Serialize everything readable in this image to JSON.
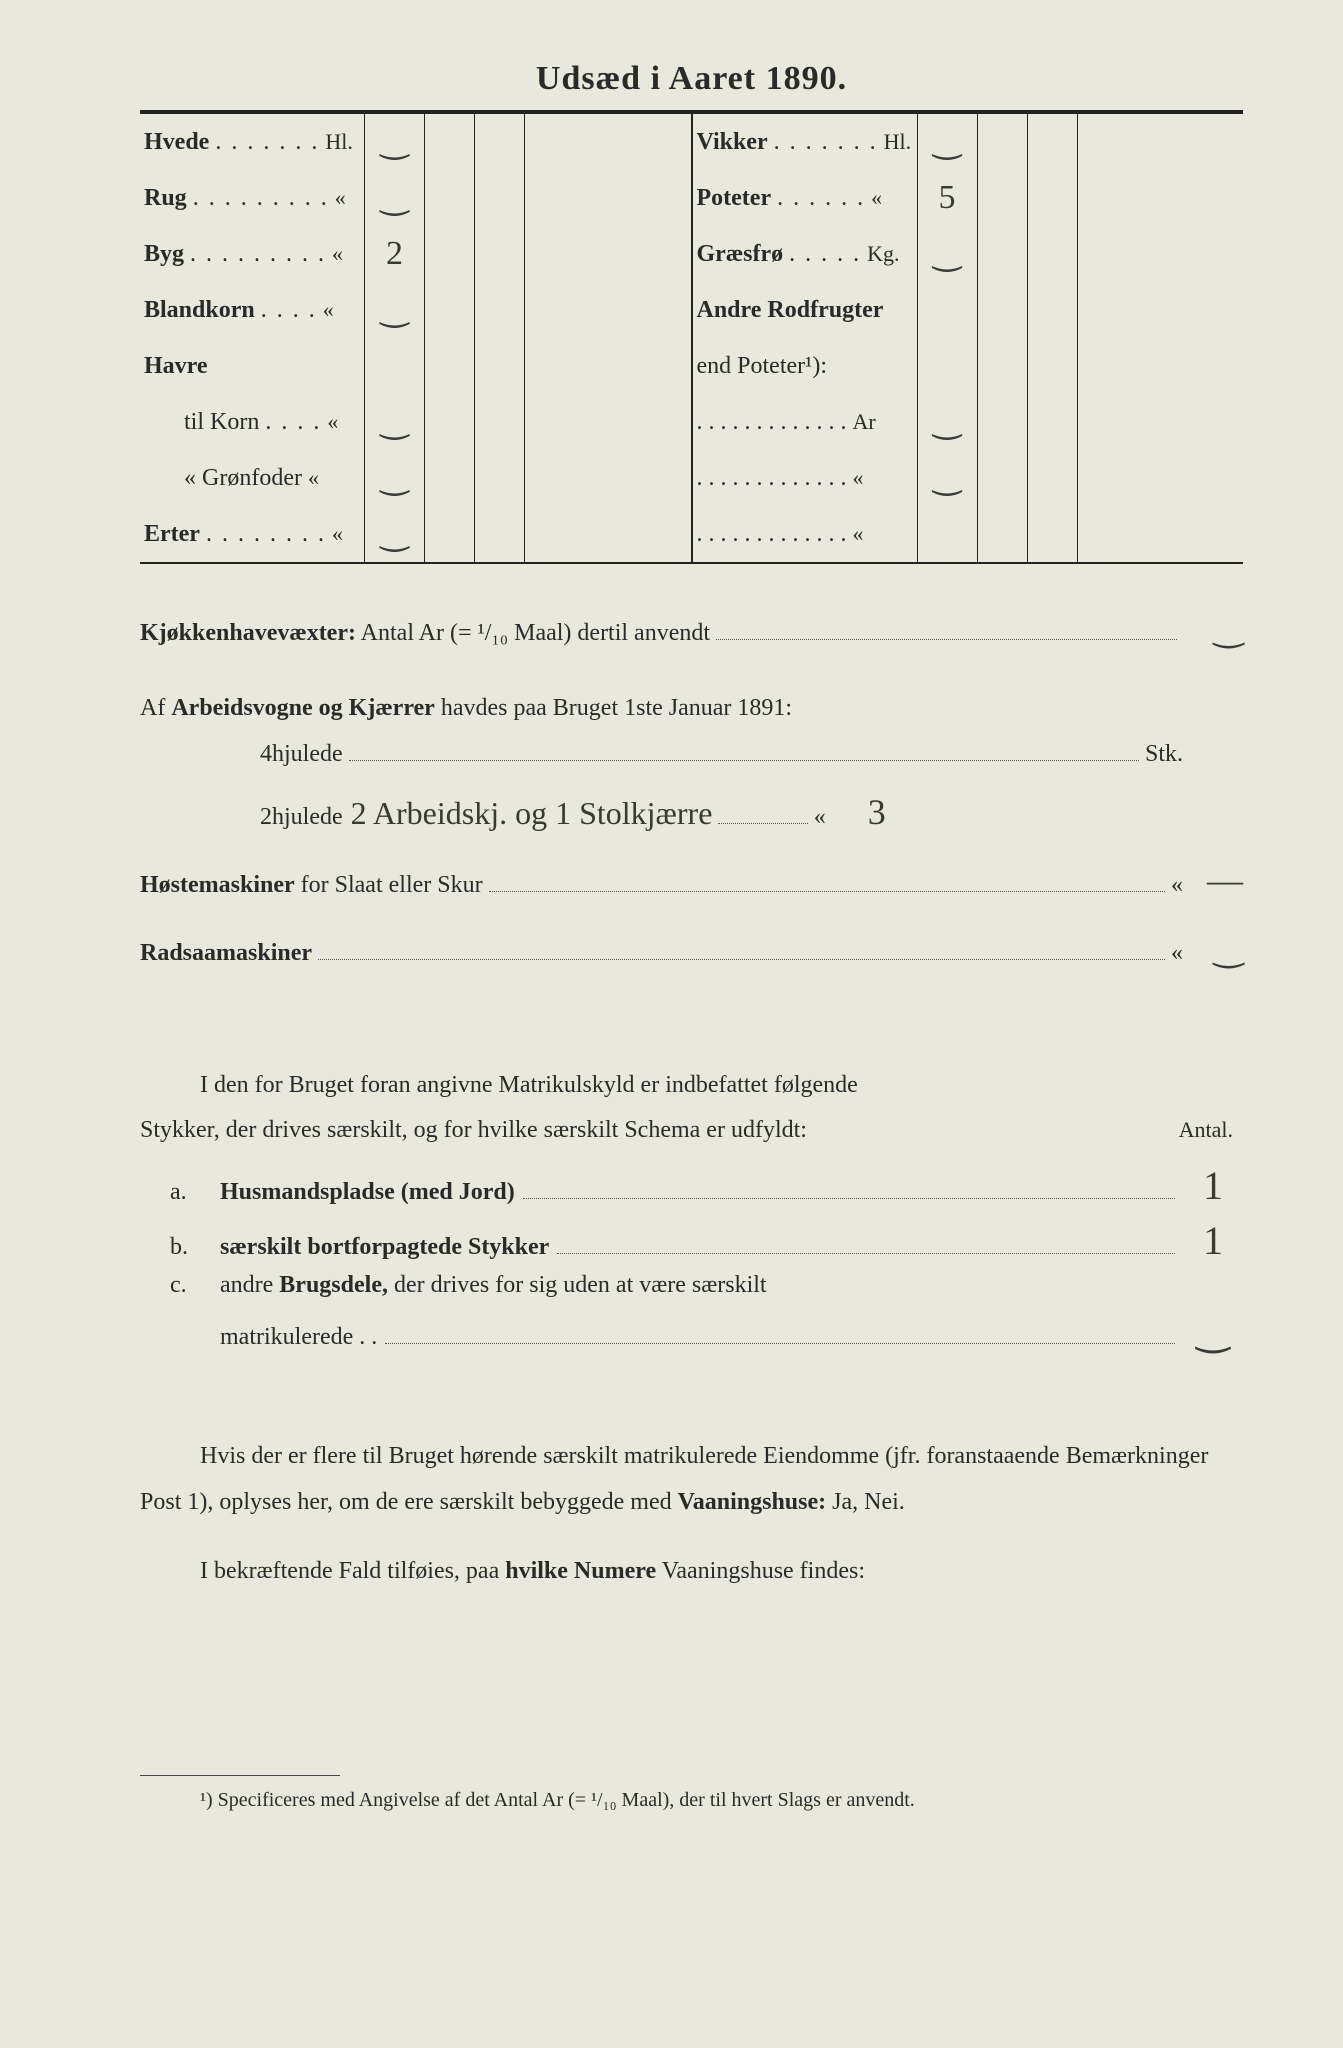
{
  "title": "Udsæd i Aaret 1890.",
  "table": {
    "left": [
      {
        "label_bold": "Hvede",
        "dots": ". . . . . . .",
        "unit": "Hl.",
        "v1": "‿",
        "v2": "",
        "v3": "",
        "v4": ""
      },
      {
        "label_bold": "Rug",
        "dots": ". . . . . . . . .",
        "unit": "«",
        "v1": "‿",
        "v2": "",
        "v3": "",
        "v4": ""
      },
      {
        "label_bold": "Byg",
        "dots": ". . . . . . . . .",
        "unit": "«",
        "v1": "2",
        "v2": "",
        "v3": "",
        "v4": ""
      },
      {
        "label_bold": "Blandkorn",
        "dots": ". . . .",
        "unit": "«",
        "v1": "‿",
        "v2": "",
        "v3": "",
        "v4": ""
      },
      {
        "label_bold": "Havre",
        "dots": "",
        "unit": "",
        "v1": "",
        "v2": "",
        "v3": "",
        "v4": ""
      },
      {
        "label_bold": "",
        "prefix": "til Korn",
        "dots": ". . . .",
        "unit": "«",
        "v1": "‿",
        "v2": "",
        "v3": "",
        "v4": ""
      },
      {
        "label_bold": "",
        "prefix": "«  Grønfoder",
        "dots": "",
        "unit": "«",
        "v1": "‿",
        "v2": "",
        "v3": "",
        "v4": ""
      },
      {
        "label_bold": "Erter",
        "dots": ". . . . . . . .",
        "unit": "«",
        "v1": "‿",
        "v2": "",
        "v3": "",
        "v4": ""
      }
    ],
    "right": [
      {
        "label_bold": "Vikker",
        "dots": ". . . . . . .",
        "unit": "Hl.",
        "v1": "‿",
        "v2": "",
        "v3": "",
        "v4": ""
      },
      {
        "label_bold": "Poteter",
        "dots": ". . . . . .",
        "unit": "«",
        "v1": "5",
        "v2": "",
        "v3": "",
        "v4": ""
      },
      {
        "label_bold": "Græsfrø",
        "dots": ". . . . .",
        "unit": "Kg.",
        "v1": "‿",
        "v2": "",
        "v3": "",
        "v4": ""
      },
      {
        "label_bold": "Andre Rodfrugter",
        "dots": "",
        "unit": "",
        "v1": "",
        "v2": "",
        "v3": "",
        "v4": ""
      },
      {
        "label_bold": "",
        "prefix": "end Poteter¹):",
        "dots": "",
        "unit": "",
        "v1": "",
        "v2": "",
        "v3": "",
        "v4": ""
      },
      {
        "label_bold": "",
        "prefix": ". . . . . . . . . . . . .",
        "dots": "",
        "unit": "Ar",
        "v1": "‿",
        "v2": "",
        "v3": "",
        "v4": ""
      },
      {
        "label_bold": "",
        "prefix": ". . . . . . . . . . . . .",
        "dots": "",
        "unit": "«",
        "v1": "‿",
        "v2": "",
        "v3": "",
        "v4": ""
      },
      {
        "label_bold": "",
        "prefix": ". . . . . . . . . . . . .",
        "dots": "",
        "unit": "«",
        "v1": "",
        "v2": "",
        "v3": "",
        "v4": ""
      }
    ]
  },
  "kjokken": {
    "label_bold": "Kjøkkenhavevæxter:",
    "rest": " Antal Ar (= ¹/₁₀ Maal) dertil anvendt",
    "value": "‿"
  },
  "vogner": {
    "prefix": "Af ",
    "bold": "Arbeidsvogne og Kjærrer",
    "rest": " havdes paa Bruget 1ste Januar 1891:",
    "row4": {
      "label": "4hjulede",
      "hand": "",
      "unit": "Stk.",
      "val": ""
    },
    "row2": {
      "label": "2hjulede",
      "hand": "2 Arbeidskj. og 1 Stolkjærre",
      "unit": "«",
      "val": "3"
    }
  },
  "hoste": {
    "bold": "Høstemaskiner",
    "rest": " for Slaat eller Skur",
    "unit": "«",
    "val": "—"
  },
  "radsaa": {
    "bold": "Radsaamaskiner",
    "rest": "",
    "unit": "«",
    "val": "‿"
  },
  "matrikul": {
    "intro1": "I den for Bruget foran angivne Matrikulskyld er indbefattet følgende",
    "intro2": "Stykker, der drives særskilt, og for hvilke særskilt Schema er udfyldt:",
    "antal": "Antal.",
    "items": [
      {
        "letter": "a.",
        "bold": "Husmandspladse (med Jord)",
        "rest": "",
        "val": "1"
      },
      {
        "letter": "b.",
        "bold": "særskilt bortforpagtede Stykker",
        "rest": "",
        "val": "1"
      },
      {
        "letter": "c.",
        "bold": "",
        "pre": "andre ",
        "bold2": "Brugsdele,",
        "rest": " der drives for sig uden at være særskilt",
        "cont": "matrikulerede . .",
        "val": "‿"
      }
    ]
  },
  "vaaningshuse": {
    "p1": "Hvis der er flere til Bruget hørende særskilt matrikulerede Eiendomme (jfr. foranstaaende Bemærkninger Post 1), oplyses her, om de ere særskilt bebyggede med ",
    "bold1": "Vaaningshuse:",
    "tail1": " Ja, Nei.",
    "p2a": "I bekræftende Fald tilføies, paa ",
    "bold2": "hvilke Numere",
    "p2b": " Vaaningshuse findes:"
  },
  "footnote": "¹) Specificeres med Angivelse af det Antal Ar (= ¹/₁₀ Maal), der til hvert Slags er anvendt."
}
